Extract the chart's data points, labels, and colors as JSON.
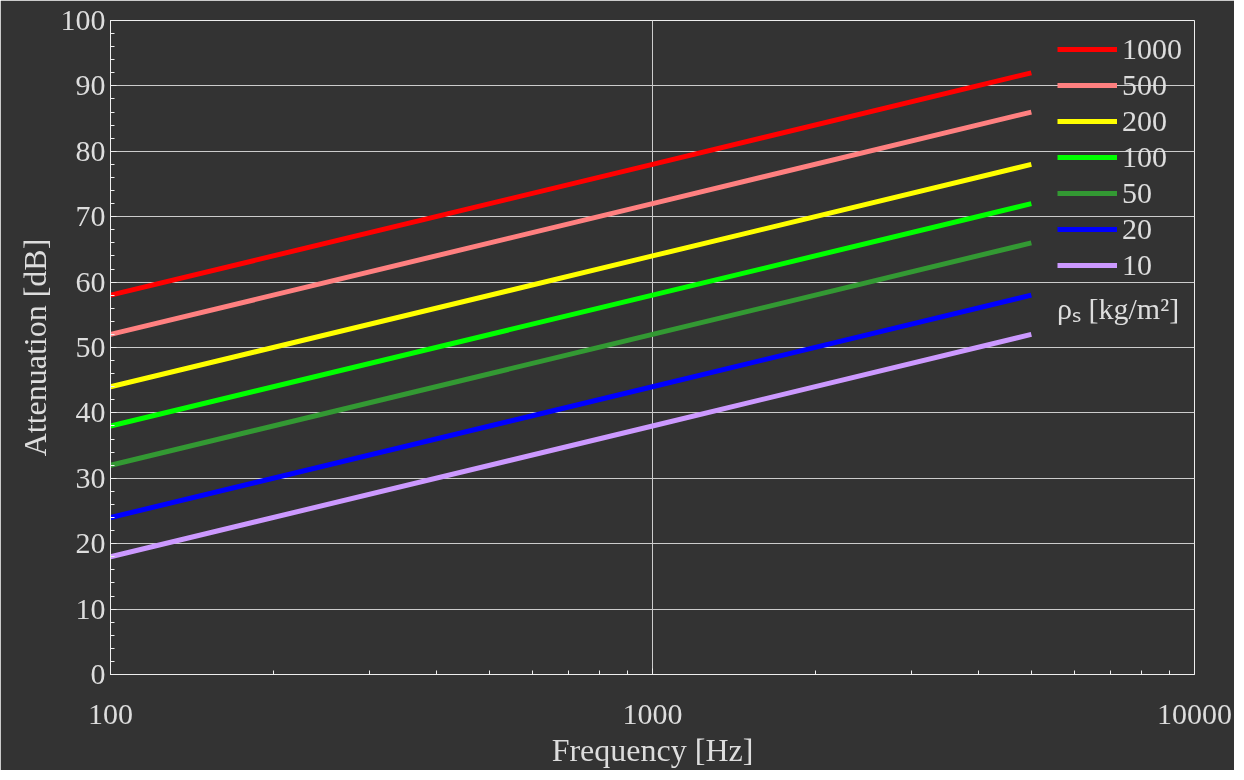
{
  "chart_data": {
    "type": "line",
    "xlabel": "Frequency [Hz]",
    "ylabel": "Attenuation [dB]",
    "legend_title": "ρₛ [kg/m²]",
    "x": [
      100,
      1000,
      5000
    ],
    "series": [
      {
        "name": "1000",
        "color": "#ff0000",
        "values": [
          58,
          78,
          92
        ]
      },
      {
        "name": "500",
        "color": "#ff8080",
        "values": [
          52,
          72,
          86
        ]
      },
      {
        "name": "200",
        "color": "#ffff00",
        "values": [
          44,
          64,
          78
        ]
      },
      {
        "name": "100",
        "color": "#00ff00",
        "values": [
          38,
          58,
          72
        ]
      },
      {
        "name": "50",
        "color": "#339933",
        "values": [
          32,
          52,
          66
        ]
      },
      {
        "name": "20",
        "color": "#0000ff",
        "values": [
          24,
          44,
          58
        ]
      },
      {
        "name": "10",
        "color": "#cc99ff",
        "values": [
          18,
          38,
          52
        ]
      }
    ],
    "log": "x",
    "xlim": [
      100,
      10000
    ],
    "xticks": [
      100,
      1000,
      10000
    ],
    "ylim": [
      0,
      100
    ],
    "yticks": [
      0,
      10,
      20,
      30,
      40,
      50,
      60,
      70,
      80,
      90,
      100
    ],
    "grid": true,
    "legend": "right",
    "marker": "none",
    "line_style": "solid"
  }
}
